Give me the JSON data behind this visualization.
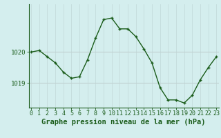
{
  "hours": [
    0,
    1,
    2,
    3,
    4,
    5,
    6,
    7,
    8,
    9,
    10,
    11,
    12,
    13,
    14,
    15,
    16,
    17,
    18,
    19,
    20,
    21,
    22,
    23
  ],
  "pressure": [
    1020.0,
    1020.05,
    1019.85,
    1019.65,
    1019.35,
    1019.15,
    1019.2,
    1019.75,
    1020.45,
    1021.05,
    1021.1,
    1020.75,
    1020.75,
    1020.5,
    1020.1,
    1019.65,
    1018.85,
    1018.45,
    1018.45,
    1018.35,
    1018.6,
    1019.1,
    1019.5,
    1019.85
  ],
  "line_color": "#1a5c1a",
  "marker": "+",
  "bg_color": "#d4eeee",
  "grid_color_v": "#c0d8d8",
  "grid_color_h": "#c0d0d0",
  "xlabel": "Graphe pression niveau de la mer (hPa)",
  "ylim_min": 1018.2,
  "ylim_max": 1021.55,
  "tick_fontsize": 6.5,
  "xlabel_fontsize": 7.5
}
